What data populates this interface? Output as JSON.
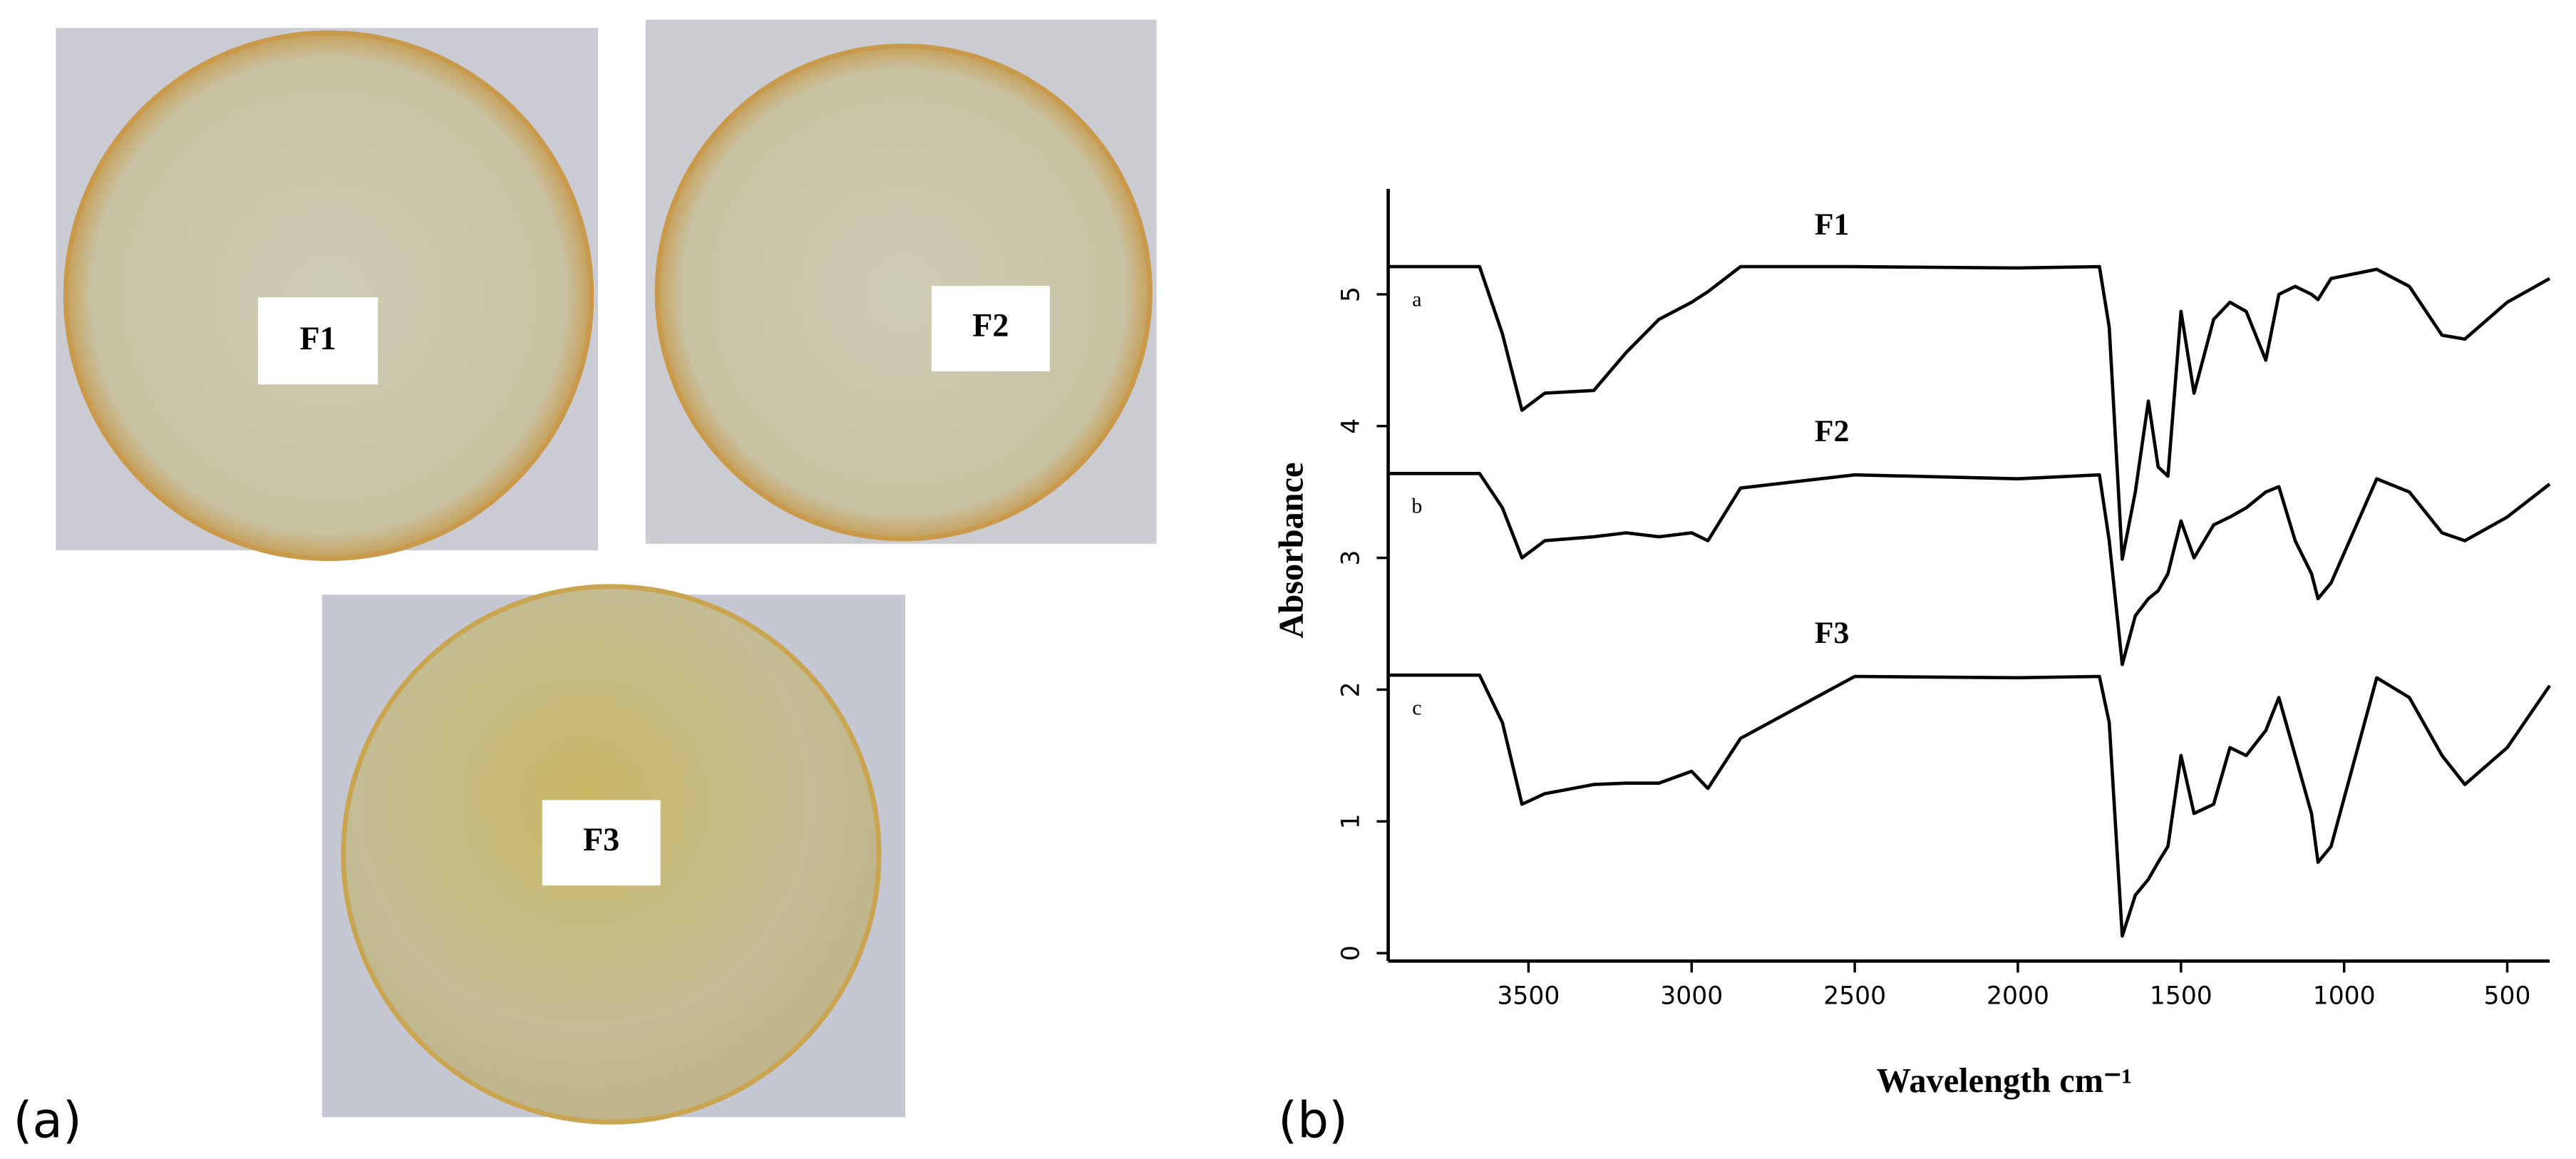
{
  "photos": {
    "label": "(a)",
    "items": [
      "F1",
      "F2",
      "F3"
    ]
  },
  "chart_data": {
    "type": "line",
    "panel_label": "(b)",
    "x_label": "Wavelength cm⁻¹",
    "y_label": "Absorbance",
    "xlim": [
      3930,
      370
    ],
    "ylim": [
      -0.06,
      5.8
    ],
    "xticks": [
      3500,
      3000,
      2500,
      2000,
      1500,
      1000,
      500
    ],
    "yticks": [
      0,
      1,
      2,
      3,
      4,
      5
    ],
    "x": [
      3930,
      3650,
      3580,
      3520,
      3450,
      3300,
      3200,
      3100,
      3000,
      2950,
      2850,
      2500,
      2000,
      1750,
      1720,
      1680,
      1640,
      1600,
      1570,
      1540,
      1500,
      1460,
      1400,
      1350,
      1300,
      1240,
      1200,
      1150,
      1100,
      1080,
      1040,
      900,
      800,
      700,
      630,
      500,
      370
    ],
    "series": [
      {
        "name": "F1",
        "tag": "a",
        "color": "#000000",
        "values": [
          5.21,
          5.21,
          4.7,
          4.12,
          4.25,
          4.27,
          4.56,
          4.81,
          4.94,
          5.02,
          5.21,
          5.21,
          5.2,
          5.21,
          4.75,
          2.99,
          3.5,
          4.19,
          3.69,
          3.62,
          4.87,
          4.25,
          4.81,
          4.94,
          4.87,
          4.5,
          5.0,
          5.06,
          5.0,
          4.96,
          5.12,
          5.19,
          5.06,
          4.69,
          4.66,
          4.94,
          5.12
        ]
      },
      {
        "name": "F2",
        "tag": "b",
        "color": "#000000",
        "values": [
          3.64,
          3.64,
          3.38,
          3.0,
          3.13,
          3.16,
          3.19,
          3.16,
          3.19,
          3.13,
          3.53,
          3.63,
          3.6,
          3.63,
          3.13,
          2.19,
          2.56,
          2.69,
          2.75,
          2.88,
          3.28,
          3.0,
          3.25,
          3.31,
          3.38,
          3.5,
          3.54,
          3.13,
          2.88,
          2.69,
          2.81,
          3.6,
          3.5,
          3.19,
          3.13,
          3.31,
          3.56
        ]
      },
      {
        "name": "F3",
        "tag": "c",
        "color": "#000000",
        "values": [
          2.11,
          2.11,
          1.75,
          1.13,
          1.21,
          1.28,
          1.29,
          1.29,
          1.38,
          1.25,
          1.63,
          2.1,
          2.09,
          2.1,
          1.75,
          0.13,
          0.44,
          0.56,
          0.69,
          0.81,
          1.5,
          1.06,
          1.13,
          1.56,
          1.5,
          1.69,
          1.94,
          1.5,
          1.06,
          0.69,
          0.81,
          2.09,
          1.94,
          1.5,
          1.28,
          1.56,
          2.03
        ]
      }
    ]
  }
}
